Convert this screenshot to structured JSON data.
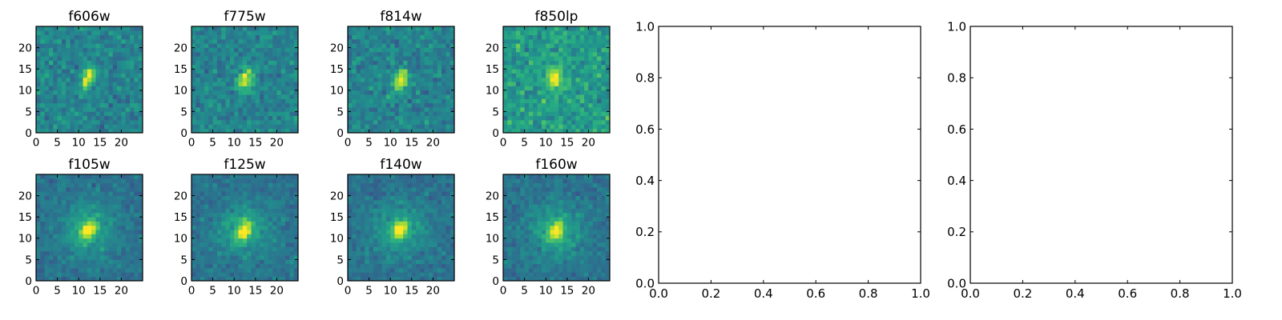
{
  "chart_data": [
    {
      "type": "heatmap",
      "title": "f606w",
      "xticks": [
        "0",
        "5",
        "10",
        "15",
        "20"
      ],
      "yticks": [
        "0",
        "5",
        "10",
        "15",
        "20"
      ],
      "xlim": [
        0,
        25
      ],
      "ylim": [
        0,
        25
      ],
      "grid_size": 25,
      "colormap": "viridis",
      "source_center": [
        12.3,
        12.8
      ],
      "source_elongation": 1.9,
      "source_angle_deg": 70
    },
    {
      "type": "heatmap",
      "title": "f775w",
      "xticks": [
        "0",
        "5",
        "10",
        "15",
        "20"
      ],
      "yticks": [
        "0",
        "5",
        "10",
        "15",
        "20"
      ],
      "xlim": [
        0,
        25
      ],
      "ylim": [
        0,
        25
      ],
      "grid_size": 25,
      "colormap": "viridis",
      "source_center": [
        12.5,
        12.5
      ],
      "source_elongation": 1.8,
      "source_angle_deg": 70
    },
    {
      "type": "heatmap",
      "title": "f814w",
      "xticks": [
        "0",
        "5",
        "10",
        "15",
        "20"
      ],
      "yticks": [
        "0",
        "5",
        "10",
        "15",
        "20"
      ],
      "xlim": [
        0,
        25
      ],
      "ylim": [
        0,
        25
      ],
      "grid_size": 25,
      "colormap": "viridis",
      "source_center": [
        12.5,
        12.5
      ],
      "source_elongation": 1.8,
      "source_angle_deg": 70
    },
    {
      "type": "heatmap",
      "title": "f850lp",
      "xticks": [
        "0",
        "5",
        "10",
        "15",
        "20"
      ],
      "yticks": [
        "0",
        "5",
        "10",
        "15",
        "20"
      ],
      "xlim": [
        0,
        25
      ],
      "ylim": [
        0,
        25
      ],
      "grid_size": 25,
      "colormap": "viridis",
      "source_center": [
        12.0,
        12.5
      ],
      "source_elongation": 1.7,
      "source_angle_deg": 75
    },
    {
      "type": "heatmap",
      "title": "f105w",
      "xticks": [
        "0",
        "5",
        "10",
        "15",
        "20"
      ],
      "yticks": [
        "0",
        "5",
        "10",
        "15",
        "20"
      ],
      "xlim": [
        0,
        25
      ],
      "ylim": [
        0,
        25
      ],
      "grid_size": 25,
      "colormap": "viridis",
      "source_center": [
        12.3,
        12.0
      ],
      "source_elongation": 1.5,
      "source_angle_deg": 60
    },
    {
      "type": "heatmap",
      "title": "f125w",
      "xticks": [
        "0",
        "5",
        "10",
        "15",
        "20"
      ],
      "yticks": [
        "0",
        "5",
        "10",
        "15",
        "20"
      ],
      "xlim": [
        0,
        25
      ],
      "ylim": [
        0,
        25
      ],
      "grid_size": 25,
      "colormap": "viridis",
      "source_center": [
        12.3,
        11.8
      ],
      "source_elongation": 1.5,
      "source_angle_deg": 60
    },
    {
      "type": "heatmap",
      "title": "f140w",
      "xticks": [
        "0",
        "5",
        "10",
        "15",
        "20"
      ],
      "yticks": [
        "0",
        "5",
        "10",
        "15",
        "20"
      ],
      "xlim": [
        0,
        25
      ],
      "ylim": [
        0,
        25
      ],
      "grid_size": 25,
      "colormap": "viridis",
      "source_center": [
        12.3,
        12.0
      ],
      "source_elongation": 1.4,
      "source_angle_deg": 60
    },
    {
      "type": "heatmap",
      "title": "f160w",
      "xticks": [
        "0",
        "5",
        "10",
        "15",
        "20"
      ],
      "yticks": [
        "0",
        "5",
        "10",
        "15",
        "20"
      ],
      "xlim": [
        0,
        25
      ],
      "ylim": [
        0,
        25
      ],
      "grid_size": 25,
      "colormap": "viridis",
      "source_center": [
        12.5,
        11.8
      ],
      "source_elongation": 1.5,
      "source_angle_deg": 60
    },
    {
      "type": "line",
      "title": "",
      "xlim": [
        0.0,
        1.0
      ],
      "ylim": [
        0.0,
        1.0
      ],
      "xticks": [
        "0.0",
        "0.2",
        "0.4",
        "0.6",
        "0.8",
        "1.0"
      ],
      "yticks": [
        "0.0",
        "0.2",
        "0.4",
        "0.6",
        "0.8",
        "1.0"
      ],
      "series": []
    },
    {
      "type": "line",
      "title": "",
      "xlim": [
        0.0,
        1.0
      ],
      "ylim": [
        0.0,
        1.0
      ],
      "xticks": [
        "0.0",
        "0.2",
        "0.4",
        "0.6",
        "0.8",
        "1.0"
      ],
      "yticks": [
        "0.0",
        "0.2",
        "0.4",
        "0.6",
        "0.8",
        "1.0"
      ],
      "series": []
    }
  ]
}
